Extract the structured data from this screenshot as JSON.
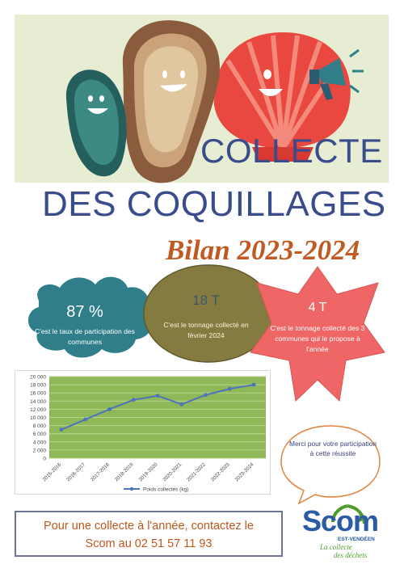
{
  "header": {
    "title_line1": "COLLECTE",
    "title_line2": "DES COQUILLAGES",
    "subtitle": "Bilan 2023-2024"
  },
  "stats": [
    {
      "value": "87 %",
      "caption": "C'est le taux de participation des communes",
      "color": "#2f7e8a"
    },
    {
      "value": "18 T",
      "caption": "C'est le tonnage collecté en février 2024",
      "color": "#857a3f"
    },
    {
      "value": "4 T",
      "caption": "C'est le tonnage collecté des 3 communes qui le propose à l'année",
      "color": "#ee6666"
    }
  ],
  "thanks": {
    "text": "Merci pour votre participation à cette réussite"
  },
  "contact": {
    "line1": "Pour une collecte à l'année, contactez le",
    "line2": "Scom au 02 51 57 11 93"
  },
  "logo": {
    "word": "Scom",
    "sub": "EST-VENDÉEN",
    "tagline1": "La collecte",
    "tagline2": "des déchets"
  },
  "colors": {
    "title": "#3b4c8c",
    "accent": "#c15a22",
    "banner": "#e6edd3",
    "line": "#4e73be",
    "plot_bg": "#8fb858"
  },
  "chart_data": {
    "type": "line",
    "categories": [
      "2015-2016",
      "2016-2017",
      "2017-2018",
      "2018-2019",
      "2019-2020",
      "2020-2021",
      "2021-2022",
      "2022-2023",
      "2023-2024"
    ],
    "series": [
      {
        "name": "Poids collectés (kg)",
        "values": [
          7000,
          9500,
          12000,
          14300,
          15300,
          13200,
          15500,
          17000,
          18000
        ]
      }
    ],
    "ylim": [
      0,
      20000
    ],
    "yticks": [
      "0",
      "2 000",
      "4 000",
      "6 000",
      "8 000",
      "10 000",
      "12 000",
      "14 000",
      "16 000",
      "18 000",
      "20 000"
    ],
    "grid": true,
    "legend": "bottom"
  }
}
